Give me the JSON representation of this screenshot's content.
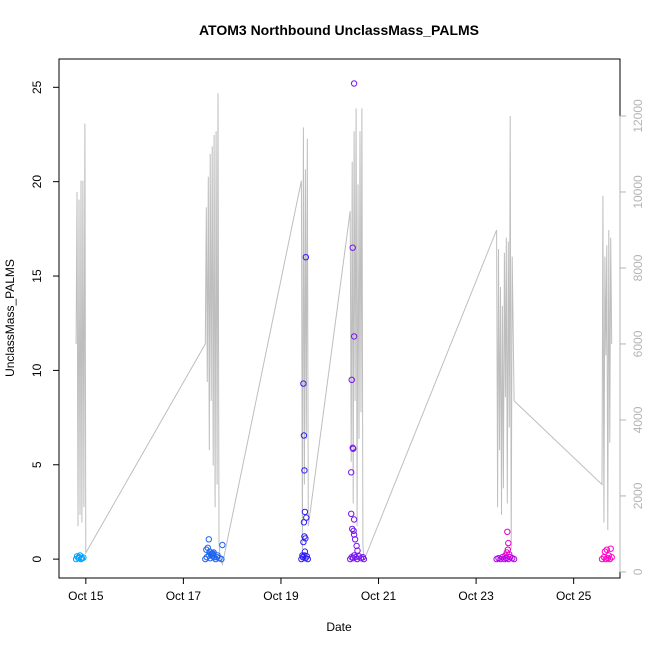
{
  "chart_data": {
    "type": "scatter",
    "title": "ATOM3 Northbound UnclassMass_PALMS",
    "xlabel": "Date",
    "ylabel": "UnclassMass_PALMS",
    "y2label": "",
    "xlim": [
      14.45,
      25.95
    ],
    "ylim": [
      -1.0,
      26.5
    ],
    "y2lim": [
      -160,
      13500
    ],
    "x_ticks": [
      {
        "value": 15,
        "label": "Oct 15"
      },
      {
        "value": 17,
        "label": "Oct 17"
      },
      {
        "value": 19,
        "label": "Oct 19"
      },
      {
        "value": 21,
        "label": "Oct 21"
      },
      {
        "value": 23,
        "label": "Oct 23"
      },
      {
        "value": 25,
        "label": "Oct 25"
      }
    ],
    "y_ticks": [
      {
        "value": 0,
        "label": "0"
      },
      {
        "value": 5,
        "label": "5"
      },
      {
        "value": 10,
        "label": "10"
      },
      {
        "value": 15,
        "label": "15"
      },
      {
        "value": 20,
        "label": "20"
      },
      {
        "value": 25,
        "label": "25"
      }
    ],
    "y2_ticks": [
      {
        "value": 0,
        "label": "0"
      },
      {
        "value": 2000,
        "label": "2000"
      },
      {
        "value": 4000,
        "label": "4000"
      },
      {
        "value": 6000,
        "label": "6000"
      },
      {
        "value": 8000,
        "label": "8000"
      },
      {
        "value": 10000,
        "label": "10000"
      },
      {
        "value": 12000,
        "label": "12000"
      }
    ],
    "altitude_line": {
      "color": "#bebebe",
      "x": [
        14.8,
        14.82,
        14.84,
        14.86,
        14.88,
        14.9,
        14.92,
        14.94,
        14.96,
        14.98,
        15.0,
        17.45,
        17.47,
        17.49,
        17.51,
        17.53,
        17.55,
        17.57,
        17.59,
        17.61,
        17.63,
        17.65,
        17.67,
        17.69,
        17.71,
        17.73,
        17.75,
        17.8,
        19.42,
        19.44,
        19.46,
        19.48,
        19.5,
        19.52,
        19.54,
        19.56,
        20.42,
        20.44,
        20.46,
        20.48,
        20.5,
        20.52,
        20.54,
        20.56,
        20.58,
        20.6,
        20.62,
        20.64,
        20.66,
        20.68,
        20.7,
        23.42,
        23.44,
        23.46,
        23.48,
        23.5,
        23.52,
        23.54,
        23.56,
        23.58,
        23.6,
        23.62,
        23.64,
        23.66,
        23.68,
        23.7,
        23.72,
        23.74,
        23.78,
        25.58,
        25.6,
        25.62,
        25.64,
        25.66,
        25.68,
        25.7,
        25.72,
        25.74,
        25.76,
        25.78
      ],
      "y": [
        6000,
        10000,
        1200,
        9800,
        1500,
        10300,
        1300,
        10300,
        1700,
        11800,
        500,
        6000,
        9600,
        5000,
        10400,
        3200,
        11000,
        4500,
        11200,
        2800,
        11500,
        1700,
        11600,
        2300,
        12600,
        800,
        400,
        200,
        10300,
        600,
        11700,
        2300,
        10600,
        3500,
        11400,
        1200,
        9500,
        2900,
        10800,
        1800,
        11600,
        4500,
        12200,
        1200,
        10200,
        3500,
        11600,
        4200,
        12200,
        700,
        300,
        9000,
        1700,
        8500,
        3200,
        7500,
        1500,
        7000,
        2200,
        8400,
        4600,
        8800,
        1800,
        8700,
        3800,
        12000,
        600,
        8300,
        4500,
        2300,
        9900,
        1300,
        8300,
        5700,
        8600,
        1100,
        9000,
        3400,
        8800,
        6000
      ]
    },
    "series": [
      {
        "color": "#00a2ff",
        "x": [
          14.8,
          14.85,
          14.9,
          14.95,
          14.82,
          14.88,
          14.92,
          14.86
        ],
        "y": [
          0.0,
          0.05,
          0.0,
          0.08,
          0.15,
          0.2,
          0.05,
          0.12
        ]
      },
      {
        "color": "#1e64f0",
        "x": [
          17.45,
          17.48,
          17.52,
          17.55,
          17.58,
          17.6,
          17.63,
          17.66,
          17.7,
          17.74,
          17.78,
          17.5,
          17.54,
          17.57,
          17.62,
          17.69,
          17.8,
          17.52,
          17.47,
          17.6
        ],
        "y": [
          0.0,
          0.1,
          0.2,
          0.05,
          0.3,
          0.15,
          0.1,
          0.0,
          0.2,
          0.05,
          0.0,
          0.6,
          0.4,
          0.25,
          0.35,
          0.1,
          0.75,
          1.05,
          0.5,
          0.3
        ]
      },
      {
        "color": "#2d1ef5",
        "x": [
          19.42,
          19.45,
          19.48,
          19.5,
          19.53,
          19.55,
          19.46,
          19.47,
          19.48,
          19.49,
          19.47,
          19.48,
          19.52,
          19.5,
          19.46,
          19.49,
          19.44,
          19.51
        ],
        "y": [
          0.0,
          0.1,
          0.2,
          0.05,
          0.15,
          0.0,
          9.3,
          6.55,
          4.7,
          2.5,
          1.95,
          1.2,
          2.2,
          1.1,
          0.9,
          0.4,
          0.2,
          16.0
        ]
      },
      {
        "color": "#7814f0",
        "x": [
          20.42,
          20.45,
          20.48,
          20.5,
          20.53,
          20.56,
          20.6,
          20.64,
          20.68,
          20.7,
          20.5,
          20.5,
          20.45,
          20.47,
          20.48,
          20.47,
          20.44,
          20.44,
          20.46,
          20.5,
          20.49,
          20.5,
          20.52,
          20.55,
          20.57
        ],
        "y": [
          0.0,
          0.1,
          0.05,
          0.2,
          0.1,
          0.0,
          0.15,
          0.05,
          0.1,
          0.0,
          25.2,
          11.8,
          9.5,
          16.5,
          5.85,
          5.9,
          4.6,
          2.4,
          1.6,
          2.1,
          1.5,
          1.3,
          1.05,
          0.7,
          0.45
        ]
      },
      {
        "color": "#b400f0",
        "x": [
          23.42,
          23.46,
          23.5,
          23.54,
          23.58,
          23.62,
          23.66,
          23.7,
          23.74,
          23.78
        ],
        "y": [
          0.0,
          0.05,
          0.0,
          0.1,
          0.0,
          0.05,
          0.0,
          0.1,
          0.05,
          0.0
        ]
      },
      {
        "color": "#e600c8",
        "x": [
          23.6,
          23.63,
          23.65,
          23.68,
          23.64,
          23.66
        ],
        "y": [
          0.2,
          0.35,
          0.5,
          0.25,
          1.45,
          0.85
        ]
      },
      {
        "color": "#ff00c8",
        "x": [
          25.58,
          25.62,
          25.66,
          25.7,
          25.74,
          25.78,
          25.64,
          25.68,
          25.72,
          25.76
        ],
        "y": [
          0.0,
          0.1,
          0.0,
          0.05,
          0.0,
          0.1,
          0.4,
          0.5,
          0.2,
          0.55
        ]
      }
    ]
  }
}
